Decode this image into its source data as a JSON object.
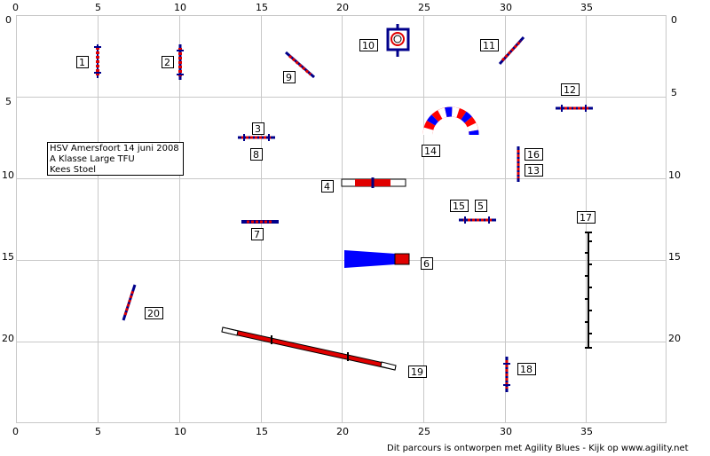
{
  "info": {
    "line1": "HSV Amersfoort 14 juni 2008",
    "line2": "A Klasse  Large TFU",
    "line3": "Kees Stoel"
  },
  "footer": "Dit parcours is ontworpen met Agility Blues - Kijk op www.agility.net",
  "x_ticks": [
    "0",
    "5",
    "10",
    "15",
    "20",
    "25",
    "30",
    "35"
  ],
  "y_ticks": [
    "0",
    "5",
    "10",
    "15",
    "20"
  ],
  "obstacle_numbers": [
    "1",
    "2",
    "3",
    "4",
    "5",
    "6",
    "7",
    "8",
    "9",
    "10",
    "11",
    "12",
    "13",
    "14",
    "15",
    "16",
    "17",
    "18",
    "19",
    "20"
  ],
  "colors": {
    "pole_red": "#e00000",
    "post_blue": "#00008b",
    "tunnel_blue": "#0000ff",
    "grid": "#c8c8c8"
  }
}
